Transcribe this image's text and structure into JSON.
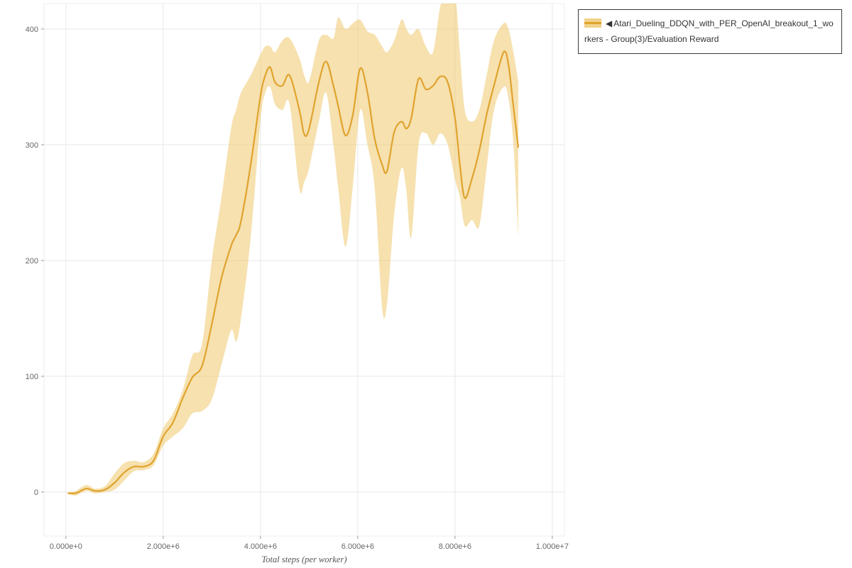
{
  "legend": {
    "marker": "◀",
    "label": "Atari_Dueling_DDQN_with_PER_OpenAI_breakout_1_workers - Group(3)/Evaluation Reward"
  },
  "colors": {
    "line": "#e0a32e",
    "band": "#eec45f",
    "band_opacity": 0.5,
    "grid": "#e8e8e8",
    "plot_border": "#ececec",
    "tick_mark": "#999999",
    "tick_text": "#666666",
    "axis_label_text": "#555555",
    "legend_border": "#3c3c3c"
  },
  "chart_data": {
    "type": "line",
    "title": "",
    "xlabel": "Total steps (per worker)",
    "ylabel": "",
    "legend_position": "top-right-outside",
    "grid": true,
    "xlim": [
      -450000,
      10250000
    ],
    "ylim": [
      -38,
      422
    ],
    "x_ticks": [
      {
        "value": 0,
        "label": "0.000e+0"
      },
      {
        "value": 2000000,
        "label": "2.000e+6"
      },
      {
        "value": 4000000,
        "label": "4.000e+6"
      },
      {
        "value": 6000000,
        "label": "6.000e+6"
      },
      {
        "value": 8000000,
        "label": "8.000e+6"
      },
      {
        "value": 10000000,
        "label": "1.000e+7"
      }
    ],
    "y_ticks": [
      {
        "value": 0,
        "label": "0"
      },
      {
        "value": 100,
        "label": "100"
      },
      {
        "value": 200,
        "label": "200"
      },
      {
        "value": 300,
        "label": "300"
      },
      {
        "value": 400,
        "label": "400"
      }
    ],
    "series": [
      {
        "name": "Atari_Dueling_DDQN_with_PER_OpenAI_breakout_1_workers - Group(3)/Evaluation Reward",
        "x": [
          50000,
          200000,
          350000,
          450000,
          600000,
          800000,
          1000000,
          1200000,
          1400000,
          1600000,
          1800000,
          2000000,
          2200000,
          2400000,
          2600000,
          2800000,
          3000000,
          3200000,
          3400000,
          3500000,
          3600000,
          3800000,
          4000000,
          4100000,
          4200000,
          4300000,
          4450000,
          4600000,
          4800000,
          4900000,
          5000000,
          5200000,
          5350000,
          5500000,
          5600000,
          5750000,
          5900000,
          6050000,
          6200000,
          6350000,
          6500000,
          6600000,
          6750000,
          6900000,
          7000000,
          7100000,
          7250000,
          7400000,
          7550000,
          7700000,
          7850000,
          8000000,
          8100000,
          8200000,
          8350000,
          8500000,
          8650000,
          8800000,
          9000000,
          9100000,
          9200000,
          9300000
        ],
        "mean": [
          -1,
          -1,
          2,
          3,
          1,
          2,
          8,
          17,
          22,
          22,
          27,
          48,
          60,
          81,
          99,
          109,
          145,
          185,
          213,
          222,
          234,
          283,
          342,
          360,
          367,
          354,
          351,
          360,
          330,
          309,
          314,
          354,
          372,
          351,
          333,
          308,
          326,
          366,
          345,
          305,
          283,
          277,
          311,
          320,
          314,
          323,
          357,
          348,
          351,
          359,
          354,
          323,
          283,
          254,
          271,
          295,
          326,
          351,
          380,
          369,
          333,
          298
        ],
        "lower": [
          -2,
          -3,
          0,
          1,
          -1,
          0,
          2,
          10,
          18,
          19,
          23,
          40,
          48,
          55,
          68,
          70,
          80,
          110,
          140,
          130,
          150,
          220,
          320,
          345,
          350,
          335,
          330,
          335,
          262,
          268,
          280,
          320,
          345,
          300,
          262,
          212,
          265,
          330,
          300,
          262,
          160,
          162,
          240,
          280,
          260,
          220,
          300,
          310,
          300,
          310,
          300,
          270,
          255,
          230,
          235,
          230,
          280,
          330,
          350,
          340,
          300,
          220
        ],
        "upper": [
          0,
          1,
          5,
          6,
          3,
          5,
          16,
          25,
          27,
          26,
          33,
          55,
          68,
          88,
          118,
          128,
          200,
          255,
          315,
          330,
          345,
          360,
          378,
          385,
          385,
          380,
          390,
          392,
          375,
          360,
          355,
          390,
          395,
          392,
          410,
          400,
          405,
          408,
          398,
          395,
          385,
          380,
          390,
          408,
          400,
          395,
          400,
          385,
          380,
          420,
          428,
          430,
          380,
          330,
          320,
          330,
          360,
          390,
          405,
          400,
          380,
          355
        ]
      }
    ]
  }
}
